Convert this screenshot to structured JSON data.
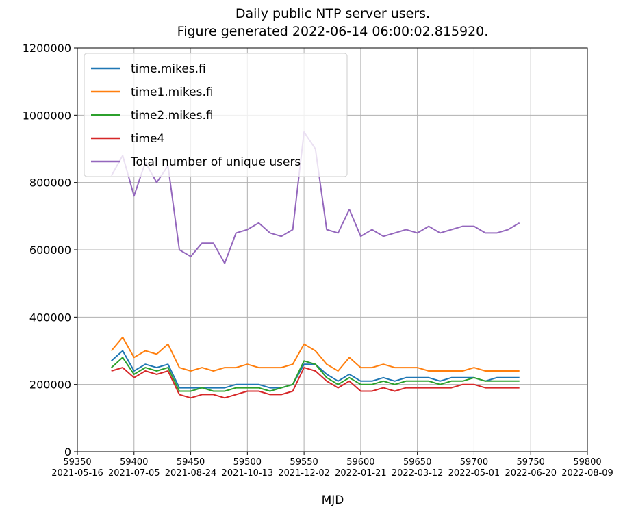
{
  "chart_data": {
    "type": "line",
    "title": "Daily public NTP server users.",
    "subtitle": "Figure generated 2022-06-14 06:00:02.815920.",
    "x_label": "MJD",
    "grid": true,
    "legend": "upper left",
    "xlim": [
      59350,
      59800
    ],
    "ylim": [
      0,
      1200000
    ],
    "xticks": [
      {
        "value": 59350,
        "label": "2021-05-16"
      },
      {
        "value": 59400,
        "label": "2021-07-05"
      },
      {
        "value": 59450,
        "label": "2021-08-24"
      },
      {
        "value": 59500,
        "label": "2021-10-13"
      },
      {
        "value": 59550,
        "label": "2021-12-02"
      },
      {
        "value": 59600,
        "label": "2022-01-21"
      },
      {
        "value": 59650,
        "label": "2022-03-12"
      },
      {
        "value": 59700,
        "label": "2022-05-01"
      },
      {
        "value": 59750,
        "label": "2022-06-20"
      },
      {
        "value": 59800,
        "label": "2022-08-09"
      }
    ],
    "yticks": [
      0,
      200000,
      400000,
      600000,
      800000,
      1000000,
      1200000
    ],
    "x": [
      59380,
      59390,
      59400,
      59410,
      59420,
      59430,
      59440,
      59450,
      59460,
      59470,
      59480,
      59490,
      59500,
      59510,
      59520,
      59530,
      59540,
      59550,
      59560,
      59570,
      59580,
      59590,
      59600,
      59610,
      59620,
      59630,
      59640,
      59650,
      59660,
      59670,
      59680,
      59690,
      59700,
      59710,
      59720,
      59730,
      59740
    ],
    "series": [
      {
        "name": "time.mikes.fi",
        "color": "#1f77b4",
        "values": [
          270000,
          300000,
          240000,
          260000,
          250000,
          260000,
          190000,
          190000,
          190000,
          190000,
          190000,
          200000,
          200000,
          200000,
          190000,
          190000,
          200000,
          260000,
          260000,
          230000,
          210000,
          230000,
          210000,
          210000,
          220000,
          210000,
          220000,
          220000,
          220000,
          210000,
          220000,
          220000,
          220000,
          210000,
          220000,
          220000,
          220000
        ]
      },
      {
        "name": "time1.mikes.fi",
        "color": "#ff7f0e",
        "values": [
          300000,
          340000,
          280000,
          300000,
          290000,
          320000,
          250000,
          240000,
          250000,
          240000,
          250000,
          250000,
          260000,
          250000,
          250000,
          250000,
          260000,
          320000,
          300000,
          260000,
          240000,
          280000,
          250000,
          250000,
          260000,
          250000,
          250000,
          250000,
          240000,
          240000,
          240000,
          240000,
          250000,
          240000,
          240000,
          240000,
          240000
        ]
      },
      {
        "name": "time2.mikes.fi",
        "color": "#2ca02c",
        "values": [
          250000,
          280000,
          230000,
          250000,
          240000,
          250000,
          180000,
          180000,
          190000,
          180000,
          180000,
          190000,
          190000,
          190000,
          180000,
          190000,
          200000,
          270000,
          260000,
          220000,
          200000,
          220000,
          200000,
          200000,
          210000,
          200000,
          210000,
          210000,
          210000,
          200000,
          210000,
          210000,
          220000,
          210000,
          210000,
          210000,
          210000
        ]
      },
      {
        "name": "time4",
        "color": "#d62728",
        "values": [
          240000,
          250000,
          220000,
          240000,
          230000,
          240000,
          170000,
          160000,
          170000,
          170000,
          160000,
          170000,
          180000,
          180000,
          170000,
          170000,
          180000,
          250000,
          240000,
          210000,
          190000,
          210000,
          180000,
          180000,
          190000,
          180000,
          190000,
          190000,
          190000,
          190000,
          190000,
          200000,
          200000,
          190000,
          190000,
          190000,
          190000
        ]
      },
      {
        "name": "Total number of unique users",
        "color": "#9467bd",
        "values": [
          820000,
          880000,
          760000,
          860000,
          800000,
          850000,
          600000,
          580000,
          620000,
          620000,
          560000,
          650000,
          660000,
          680000,
          650000,
          640000,
          660000,
          950000,
          900000,
          660000,
          650000,
          720000,
          640000,
          660000,
          640000,
          650000,
          660000,
          650000,
          670000,
          650000,
          660000,
          670000,
          670000,
          650000,
          650000,
          660000,
          680000
        ]
      }
    ]
  }
}
